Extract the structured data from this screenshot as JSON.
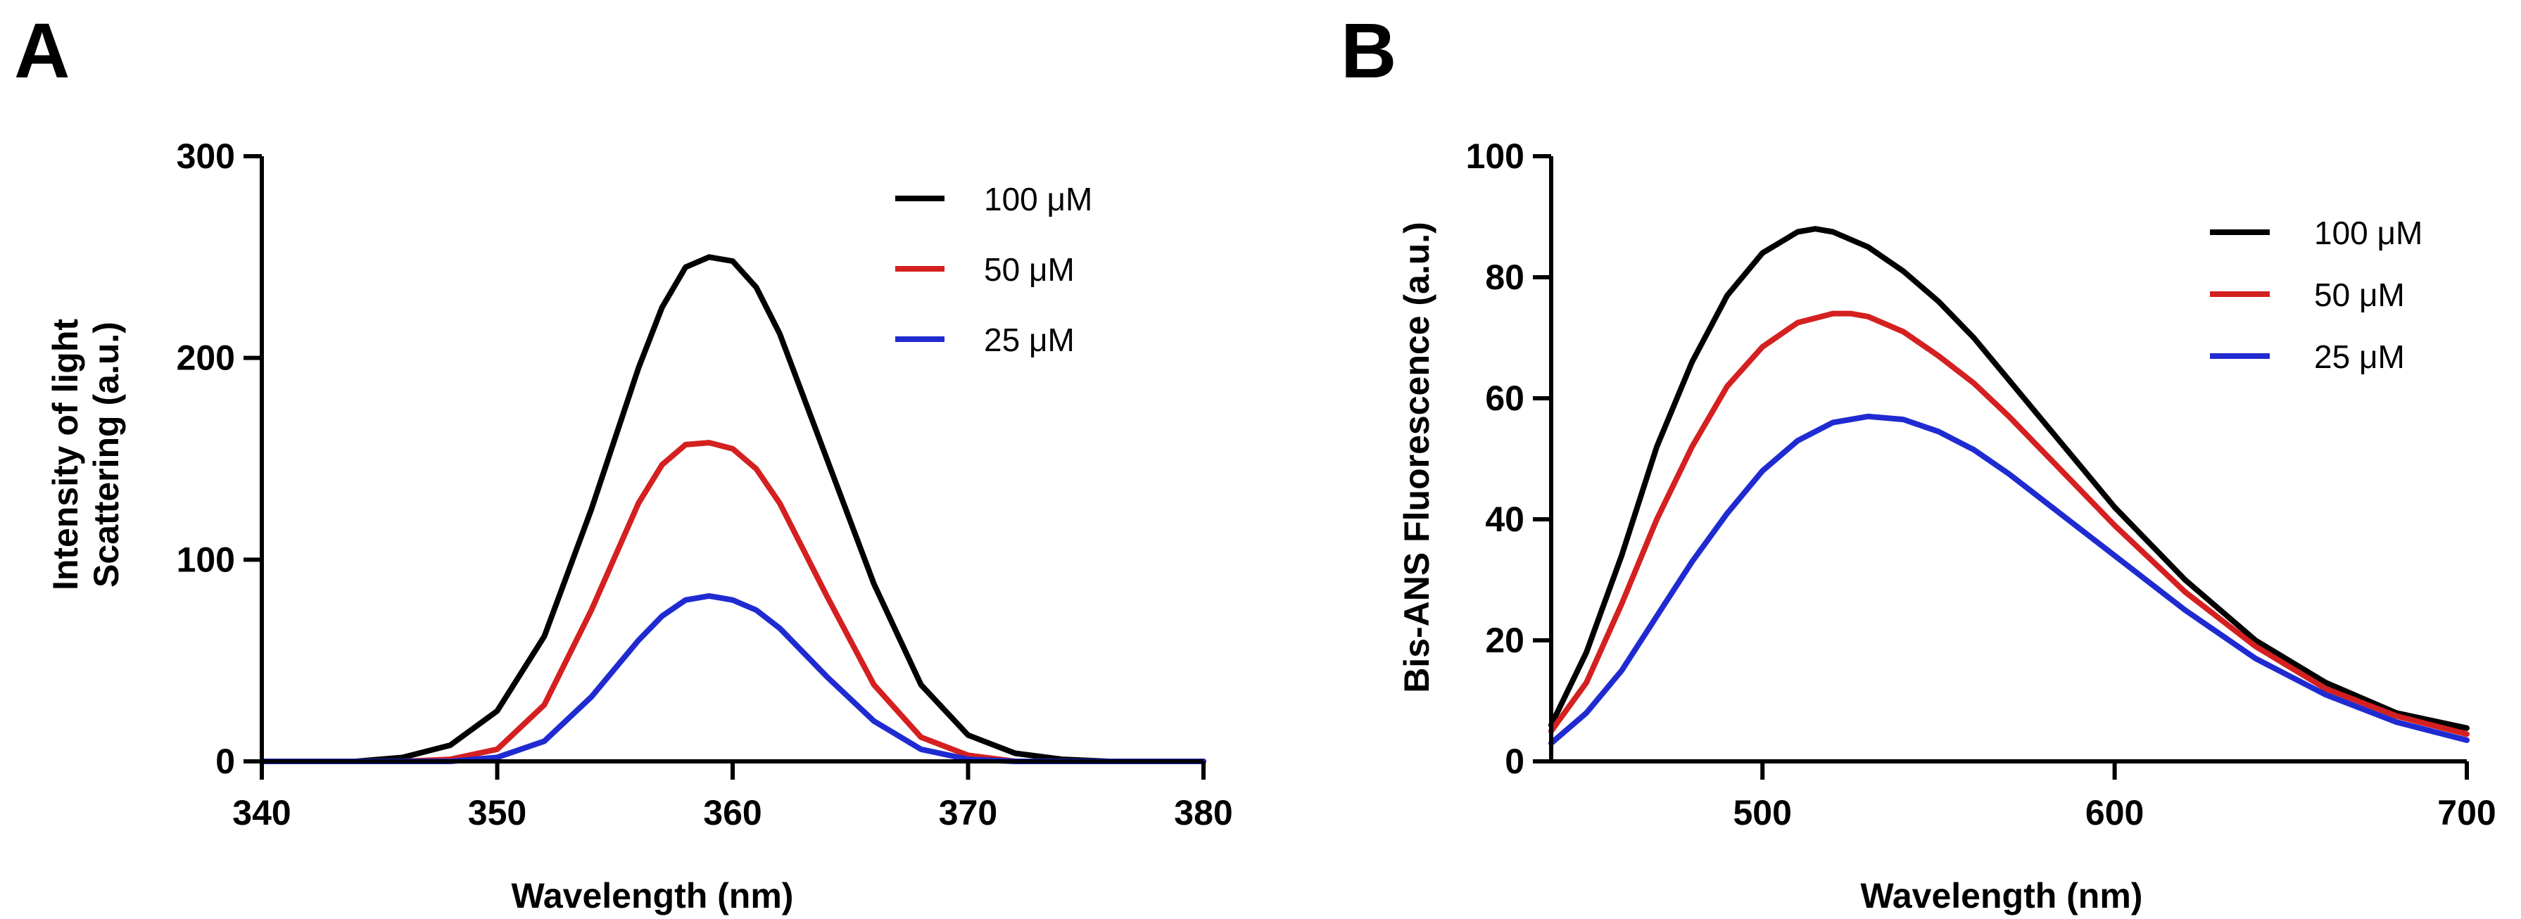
{
  "chart_data": [
    {
      "panel": "A",
      "type": "line",
      "title": "",
      "xlabel": "Wavelength (nm)",
      "ylabel_lines": [
        "Intensity of light",
        "Scattering (a.u.)"
      ],
      "xlim": [
        340,
        380
      ],
      "ylim": [
        0,
        300
      ],
      "xticks": [
        340,
        350,
        360,
        370,
        380
      ],
      "yticks": [
        0,
        100,
        200,
        300
      ],
      "grid": false,
      "legend_position": "top-right",
      "series": [
        {
          "name": "100 μM",
          "color": "#000000",
          "x": [
            340,
            342,
            344,
            346,
            348,
            350,
            352,
            354,
            356,
            357,
            358,
            359,
            360,
            361,
            362,
            364,
            366,
            368,
            370,
            372,
            374,
            376,
            378,
            380
          ],
          "y": [
            0,
            0,
            0,
            2,
            8,
            25,
            62,
            125,
            195,
            225,
            245,
            250,
            248,
            235,
            212,
            150,
            88,
            38,
            13,
            4,
            1,
            0,
            0,
            0
          ]
        },
        {
          "name": "50 μM",
          "color": "#d42020",
          "x": [
            340,
            342,
            344,
            346,
            348,
            350,
            352,
            354,
            356,
            357,
            358,
            359,
            360,
            361,
            362,
            364,
            366,
            368,
            370,
            372,
            374,
            376,
            378,
            380
          ],
          "y": [
            0,
            0,
            0,
            0,
            1,
            6,
            28,
            75,
            128,
            147,
            157,
            158,
            155,
            145,
            128,
            82,
            38,
            12,
            3,
            0,
            0,
            0,
            0,
            0
          ]
        },
        {
          "name": "25 μM",
          "color": "#1f2bd1",
          "x": [
            340,
            342,
            344,
            346,
            348,
            350,
            352,
            354,
            356,
            357,
            358,
            359,
            360,
            361,
            362,
            364,
            366,
            368,
            370,
            372,
            374,
            376,
            378,
            380
          ],
          "y": [
            0,
            0,
            0,
            0,
            0,
            2,
            10,
            32,
            60,
            72,
            80,
            82,
            80,
            75,
            66,
            42,
            20,
            6,
            1,
            0,
            0,
            0,
            0,
            0
          ]
        }
      ]
    },
    {
      "panel": "B",
      "type": "line",
      "title": "",
      "xlabel": "Wavelength (nm)",
      "ylabel_lines": [
        "Bis-ANS Fluorescence (a.u.)"
      ],
      "xlim": [
        440,
        700
      ],
      "ylim": [
        0,
        100
      ],
      "xticks": [
        500,
        600,
        700
      ],
      "yticks": [
        0,
        20,
        40,
        60,
        80,
        100
      ],
      "grid": false,
      "legend_position": "top-right",
      "series": [
        {
          "name": "100 μM",
          "color": "#000000",
          "x": [
            440,
            450,
            460,
            470,
            480,
            490,
            500,
            510,
            515,
            520,
            530,
            540,
            550,
            560,
            570,
            580,
            590,
            600,
            620,
            640,
            660,
            680,
            700
          ],
          "y": [
            6,
            18,
            34,
            52,
            66,
            77,
            84,
            87.5,
            88,
            87.5,
            85,
            81,
            76,
            70,
            63,
            56,
            49,
            42,
            30,
            20,
            13,
            8,
            5.5
          ]
        },
        {
          "name": "50 μM",
          "color": "#d42020",
          "x": [
            440,
            450,
            460,
            470,
            480,
            490,
            500,
            510,
            520,
            525,
            530,
            540,
            550,
            560,
            570,
            580,
            590,
            600,
            620,
            640,
            660,
            680,
            700
          ],
          "y": [
            5,
            13,
            26,
            40,
            52,
            62,
            68.5,
            72.5,
            74,
            74,
            73.5,
            71,
            67,
            62.5,
            57,
            51,
            45,
            39,
            28,
            19,
            12,
            7.5,
            4.5
          ]
        },
        {
          "name": "25 μM",
          "color": "#1f2bd1",
          "x": [
            440,
            450,
            460,
            470,
            480,
            490,
            500,
            510,
            520,
            530,
            540,
            550,
            560,
            570,
            580,
            590,
            600,
            620,
            640,
            660,
            680,
            700
          ],
          "y": [
            3,
            8,
            15,
            24,
            33,
            41,
            48,
            53,
            56,
            57,
            56.5,
            54.5,
            51.5,
            47.5,
            43,
            38.5,
            34,
            25,
            17,
            11,
            6.5,
            3.5
          ]
        }
      ]
    }
  ]
}
